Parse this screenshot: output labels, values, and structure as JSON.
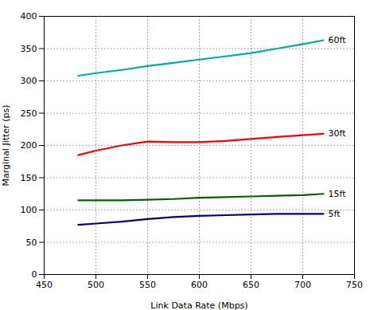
{
  "chart_data": {
    "type": "line",
    "xlabel": "Link Data Rate (Mbps)",
    "ylabel": "Marginal Jitter (ps)",
    "x": [
      483,
      500,
      525,
      550,
      575,
      600,
      625,
      650,
      675,
      700,
      720
    ],
    "series": [
      {
        "name": "60ft",
        "color": "#00AAAA",
        "values": [
          308,
          312,
          317,
          323,
          328,
          333,
          338,
          343,
          350,
          357,
          363
        ]
      },
      {
        "name": "30ft",
        "color": "#FF0000",
        "values": [
          185,
          192,
          200,
          206,
          205,
          205,
          207,
          210,
          213,
          216,
          218
        ]
      },
      {
        "name": "15ft",
        "color": "#006400",
        "values": [
          115,
          115,
          115,
          116,
          117,
          119,
          120,
          121,
          122,
          123,
          125
        ]
      },
      {
        "name": "5ft",
        "color": "#000080",
        "values": [
          77,
          79,
          82,
          86,
          89,
          91,
          92,
          93,
          94,
          94,
          94
        ]
      }
    ],
    "xlim": [
      450,
      750
    ],
    "ylim": [
      0,
      400
    ],
    "xticks": [
      450,
      500,
      550,
      600,
      650,
      700,
      750
    ],
    "yticks": [
      0,
      50,
      100,
      150,
      200,
      250,
      300,
      350,
      400
    ],
    "grid": true
  }
}
